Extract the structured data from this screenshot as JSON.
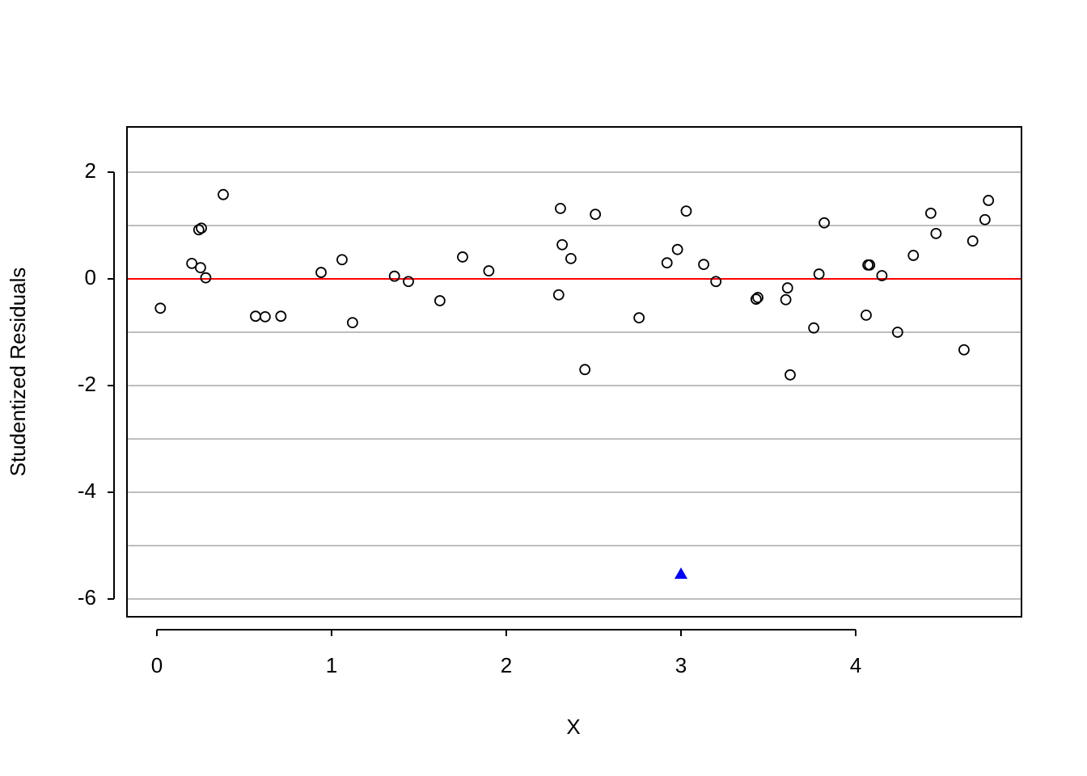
{
  "chart_data": {
    "type": "scatter",
    "xlabel": "X",
    "ylabel": "Studentized Residuals",
    "xlim": [
      -0.171,
      4.949
    ],
    "ylim": [
      -6.333,
      2.848
    ],
    "xticks": [
      0,
      1,
      2,
      3,
      4
    ],
    "yticks": [
      -6,
      -4,
      -2,
      0,
      2
    ],
    "ygrid": [
      -6,
      -5,
      -4,
      -3,
      -2,
      -1,
      0,
      1,
      2
    ],
    "grid_color": "#bebebe",
    "hline": {
      "value": 0,
      "color": "#ff0000"
    },
    "series": [
      {
        "marker": "circle",
        "color": "#000000",
        "x": [
          0.02,
          0.2,
          0.24,
          0.255,
          0.25,
          0.28,
          0.38,
          0.565,
          0.62,
          0.71,
          0.94,
          1.06,
          1.12,
          1.36,
          1.44,
          1.62,
          1.75,
          1.9,
          2.3,
          2.31,
          2.32,
          2.37,
          2.45,
          2.51,
          2.76,
          2.92,
          2.98,
          3.03,
          3.13,
          3.2,
          3.43,
          3.44,
          3.6,
          3.61,
          3.625,
          3.76,
          3.79,
          3.82,
          4.06,
          4.07,
          4.08,
          4.15,
          4.24,
          4.33,
          4.43,
          4.46,
          4.62,
          4.67,
          4.74,
          4.76
        ],
        "values": [
          -0.55,
          0.29,
          0.92,
          0.95,
          0.21,
          0.02,
          1.58,
          -0.7,
          -0.71,
          -0.7,
          0.12,
          0.36,
          -0.82,
          0.05,
          -0.05,
          -0.41,
          0.41,
          0.15,
          -0.3,
          1.32,
          0.64,
          0.38,
          -1.7,
          1.21,
          -0.73,
          0.3,
          0.55,
          1.27,
          0.27,
          -0.05,
          -0.38,
          -0.35,
          -0.39,
          -0.17,
          -1.8,
          -0.92,
          0.09,
          1.05,
          -0.68,
          0.26,
          0.26,
          0.06,
          -1.0,
          0.44,
          1.23,
          0.85,
          -1.33,
          0.71,
          1.11,
          1.47
        ]
      },
      {
        "marker": "triangle",
        "color": "#0000ff",
        "x": [
          3.0
        ],
        "values": [
          -5.53
        ]
      }
    ]
  }
}
